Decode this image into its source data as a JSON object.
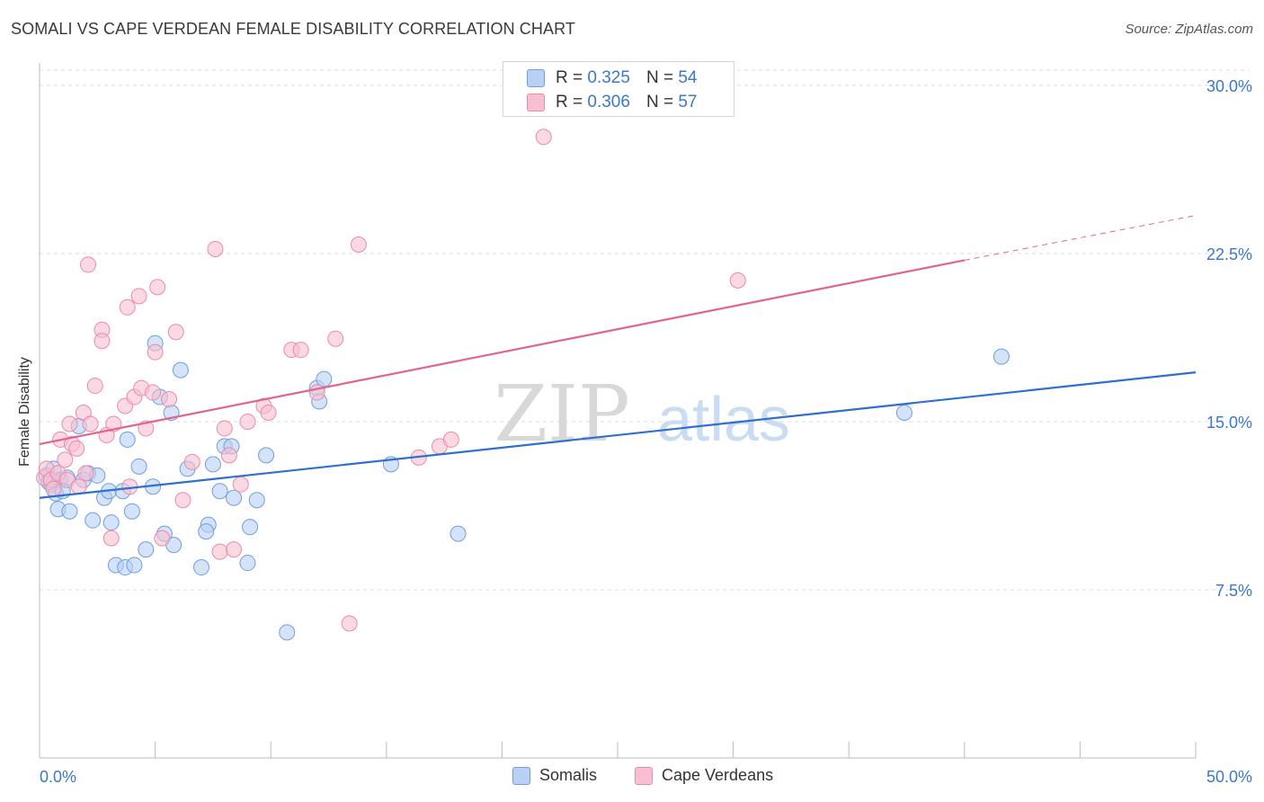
{
  "title": "SOMALI VS CAPE VERDEAN FEMALE DISABILITY CORRELATION CHART",
  "source": "Source: ZipAtlas.com",
  "watermark": {
    "zip": "ZIP",
    "atlas": "atlas"
  },
  "legend": {
    "rows": [
      {
        "r_label": "R =",
        "r_value": "0.325",
        "n_label": "N =",
        "n_value": "54"
      },
      {
        "r_label": "R =",
        "r_value": "0.306",
        "n_label": "N =",
        "n_value": "57"
      }
    ]
  },
  "bottom_legend": [
    "Somalis",
    "Cape Verdeans"
  ],
  "colors": {
    "somali_fill": "#b8d0f2",
    "somali_stroke": "#6f9ee0",
    "somali_line": "#2f6fcf",
    "cape_fill": "#f7bfd0",
    "cape_stroke": "#ea8aaa",
    "cape_line": "#e0648e",
    "tick_label": "#3a78c8",
    "grid": "#dddddd"
  },
  "chart_data": {
    "type": "scatter",
    "title": "SOMALI VS CAPE VERDEAN FEMALE DISABILITY CORRELATION CHART",
    "xlabel": "",
    "ylabel": "Female Disability",
    "xlim": [
      0,
      50
    ],
    "ylim": [
      0,
      31
    ],
    "x_tick_labels": [
      "0.0%",
      "50.0%"
    ],
    "y_ticks": [
      7.5,
      15.0,
      22.5,
      30.0
    ],
    "y_tick_labels": [
      "7.5%",
      "15.0%",
      "22.5%",
      "30.0%"
    ],
    "grid": true,
    "legend_position": "top-center",
    "series": [
      {
        "name": "Somalis",
        "trend": {
          "x0": 0,
          "y0": 11.6,
          "x1": 50,
          "y1": 17.2,
          "dashed_from": 50
        },
        "points": [
          [
            0.3,
            12.6
          ],
          [
            0.5,
            12.2
          ],
          [
            0.6,
            12.9
          ],
          [
            0.7,
            11.8
          ],
          [
            0.9,
            12.4
          ],
          [
            0.8,
            11.1
          ],
          [
            1.2,
            12.5
          ],
          [
            1.3,
            11.0
          ],
          [
            1.7,
            14.8
          ],
          [
            1.9,
            12.4
          ],
          [
            2.1,
            12.7
          ],
          [
            2.3,
            10.6
          ],
          [
            2.5,
            12.6
          ],
          [
            2.8,
            11.6
          ],
          [
            3.0,
            11.9
          ],
          [
            3.1,
            10.5
          ],
          [
            3.3,
            8.6
          ],
          [
            3.6,
            11.9
          ],
          [
            3.7,
            8.5
          ],
          [
            3.8,
            14.2
          ],
          [
            4.0,
            11.0
          ],
          [
            4.1,
            8.6
          ],
          [
            4.3,
            13.0
          ],
          [
            4.6,
            9.3
          ],
          [
            4.9,
            12.1
          ],
          [
            5.0,
            18.5
          ],
          [
            5.2,
            16.1
          ],
          [
            5.4,
            10.0
          ],
          [
            5.7,
            15.4
          ],
          [
            5.8,
            9.5
          ],
          [
            6.1,
            17.3
          ],
          [
            6.4,
            12.9
          ],
          [
            7.0,
            8.5
          ],
          [
            7.3,
            10.4
          ],
          [
            7.2,
            10.1
          ],
          [
            7.5,
            13.1
          ],
          [
            7.8,
            11.9
          ],
          [
            8.0,
            13.9
          ],
          [
            8.3,
            13.9
          ],
          [
            8.4,
            11.6
          ],
          [
            9.0,
            8.7
          ],
          [
            9.1,
            10.3
          ],
          [
            9.4,
            11.5
          ],
          [
            9.8,
            13.5
          ],
          [
            10.7,
            5.6
          ],
          [
            12.0,
            16.5
          ],
          [
            12.1,
            15.9
          ],
          [
            12.3,
            16.9
          ],
          [
            15.2,
            13.1
          ],
          [
            18.1,
            10.0
          ],
          [
            37.4,
            15.4
          ],
          [
            41.6,
            17.9
          ],
          [
            0.4,
            12.3
          ],
          [
            1.0,
            11.9
          ]
        ]
      },
      {
        "name": "Cape Verdeans",
        "trend": {
          "x0": 0,
          "y0": 14.0,
          "x1": 40,
          "y1": 22.2,
          "dashed_from": 40,
          "dash_x1": 50,
          "dash_y1": 24.2
        },
        "points": [
          [
            0.2,
            12.5
          ],
          [
            0.3,
            12.9
          ],
          [
            0.5,
            12.4
          ],
          [
            0.6,
            12.0
          ],
          [
            0.8,
            12.7
          ],
          [
            0.9,
            14.2
          ],
          [
            1.1,
            13.3
          ],
          [
            1.2,
            12.4
          ],
          [
            1.3,
            14.9
          ],
          [
            1.4,
            14.0
          ],
          [
            1.6,
            13.8
          ],
          [
            1.7,
            12.1
          ],
          [
            1.9,
            15.4
          ],
          [
            2.0,
            12.7
          ],
          [
            2.1,
            22.0
          ],
          [
            2.2,
            14.9
          ],
          [
            2.4,
            16.6
          ],
          [
            2.7,
            19.1
          ],
          [
            2.7,
            18.6
          ],
          [
            2.9,
            14.4
          ],
          [
            3.2,
            14.9
          ],
          [
            3.1,
            9.8
          ],
          [
            3.7,
            15.7
          ],
          [
            3.8,
            20.1
          ],
          [
            3.9,
            12.1
          ],
          [
            4.1,
            16.1
          ],
          [
            4.3,
            20.6
          ],
          [
            4.4,
            16.5
          ],
          [
            4.6,
            14.7
          ],
          [
            4.9,
            16.3
          ],
          [
            5.0,
            18.1
          ],
          [
            5.1,
            21.0
          ],
          [
            5.3,
            9.8
          ],
          [
            5.6,
            16.0
          ],
          [
            5.9,
            19.0
          ],
          [
            6.2,
            11.5
          ],
          [
            6.6,
            13.2
          ],
          [
            7.6,
            22.7
          ],
          [
            7.8,
            9.2
          ],
          [
            8.0,
            14.7
          ],
          [
            8.2,
            13.5
          ],
          [
            8.4,
            9.3
          ],
          [
            8.7,
            12.2
          ],
          [
            9.0,
            15.0
          ],
          [
            9.7,
            15.7
          ],
          [
            9.9,
            15.4
          ],
          [
            10.9,
            18.2
          ],
          [
            11.3,
            18.2
          ],
          [
            12.0,
            16.3
          ],
          [
            12.8,
            18.7
          ],
          [
            13.4,
            6.0
          ],
          [
            13.8,
            22.9
          ],
          [
            16.4,
            13.4
          ],
          [
            17.3,
            13.9
          ],
          [
            17.8,
            14.2
          ],
          [
            21.8,
            27.7
          ],
          [
            30.2,
            21.3
          ]
        ]
      }
    ]
  }
}
